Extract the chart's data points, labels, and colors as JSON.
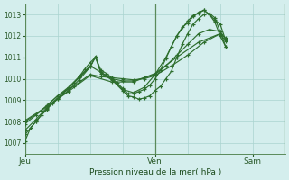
{
  "xlabel": "Pression niveau de la mer( hPa )",
  "bg_color": "#d4eeed",
  "grid_color": "#aad4d0",
  "line_color": "#2d6e2d",
  "ylim": [
    1006.5,
    1013.5
  ],
  "xlim": [
    0,
    48
  ],
  "day_lines": [
    0,
    24,
    48
  ],
  "xtick_pos": [
    0,
    24,
    42
  ],
  "xticklabels": [
    "Jeu",
    "Ven",
    "Sam"
  ],
  "yticks": [
    1007,
    1008,
    1009,
    1010,
    1011,
    1012,
    1013
  ],
  "series": [
    {
      "x": [
        0,
        1,
        2,
        3,
        4,
        5,
        6,
        7,
        8,
        9,
        10,
        11,
        12,
        13,
        14,
        15,
        16,
        17,
        18,
        19,
        20,
        21,
        22,
        23,
        24,
        25,
        26,
        27,
        28,
        29,
        30,
        31,
        32,
        33,
        34,
        35,
        36,
        37
      ],
      "y": [
        1007.1,
        1007.7,
        1008.0,
        1008.3,
        1008.55,
        1008.85,
        1009.05,
        1009.35,
        1009.55,
        1009.8,
        1010.1,
        1010.45,
        1010.75,
        1011.0,
        1010.4,
        1010.25,
        1010.05,
        1009.8,
        1009.55,
        1009.3,
        1009.3,
        1009.4,
        1009.5,
        1009.7,
        1010.0,
        1010.4,
        1010.95,
        1011.5,
        1012.0,
        1012.4,
        1012.6,
        1012.9,
        1013.1,
        1013.2,
        1013.0,
        1012.75,
        1012.55,
        1011.8
      ]
    },
    {
      "x": [
        0,
        2,
        4,
        6,
        8,
        10,
        12,
        13,
        14,
        16,
        18,
        20,
        22,
        24,
        26,
        28,
        30,
        31,
        32,
        33,
        34,
        35,
        36,
        37
      ],
      "y": [
        1007.4,
        1008.0,
        1008.6,
        1009.05,
        1009.45,
        1009.95,
        1010.55,
        1011.05,
        1010.3,
        1010.0,
        1009.5,
        1009.35,
        1009.6,
        1010.2,
        1011.0,
        1012.0,
        1012.7,
        1012.95,
        1013.05,
        1013.2,
        1013.0,
        1012.65,
        1012.0,
        1011.5
      ]
    },
    {
      "x": [
        0,
        2,
        4,
        6,
        8,
        10,
        12,
        13,
        14,
        16,
        18,
        19,
        20,
        21,
        22,
        23,
        24,
        25,
        26,
        27,
        28,
        29,
        30,
        31,
        32,
        33,
        34,
        35,
        36,
        37
      ],
      "y": [
        1007.6,
        1008.1,
        1008.65,
        1009.1,
        1009.55,
        1010.05,
        1010.55,
        1011.0,
        1010.25,
        1009.95,
        1009.45,
        1009.2,
        1009.15,
        1009.05,
        1009.1,
        1009.2,
        1009.45,
        1009.65,
        1010.0,
        1010.35,
        1011.0,
        1011.6,
        1012.1,
        1012.55,
        1012.8,
        1013.0,
        1013.05,
        1012.85,
        1012.2,
        1011.5
      ]
    },
    {
      "x": [
        0,
        2,
        4,
        6,
        8,
        10,
        12,
        14,
        16,
        18,
        20,
        22,
        24,
        26,
        28,
        30,
        32,
        34,
        36,
        37
      ],
      "y": [
        1007.9,
        1008.3,
        1008.75,
        1009.2,
        1009.6,
        1010.1,
        1010.6,
        1010.3,
        1010.0,
        1009.9,
        1009.9,
        1010.05,
        1010.2,
        1010.6,
        1011.1,
        1011.6,
        1012.1,
        1012.3,
        1012.2,
        1011.85
      ]
    },
    {
      "x": [
        0,
        3,
        6,
        9,
        12,
        14,
        16,
        18,
        20,
        22,
        24,
        27,
        30,
        33,
        36,
        37
      ],
      "y": [
        1008.0,
        1008.5,
        1009.2,
        1009.65,
        1010.2,
        1010.1,
        1010.05,
        1010.0,
        1009.95,
        1010.0,
        1010.15,
        1010.6,
        1011.1,
        1011.7,
        1012.1,
        1011.75
      ]
    },
    {
      "x": [
        0,
        4,
        8,
        12,
        16,
        20,
        24,
        28,
        32,
        36,
        37
      ],
      "y": [
        1008.05,
        1008.7,
        1009.4,
        1010.15,
        1009.85,
        1009.85,
        1010.25,
        1011.0,
        1011.7,
        1012.1,
        1011.9
      ]
    }
  ]
}
